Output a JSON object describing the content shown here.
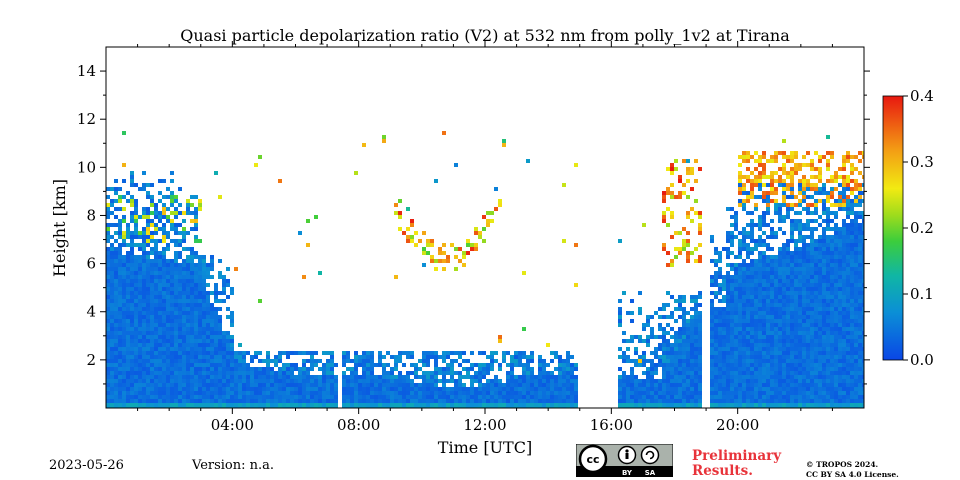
{
  "chart_data": {
    "type": "heatmap",
    "title": "Quasi particle depolarization ratio (V2) at 532 nm from polly_1v2 at Tirana",
    "xlabel": "Time [UTC]",
    "ylabel": "Height [km]",
    "xlim": [
      0,
      24
    ],
    "ylim": [
      0,
      15
    ],
    "x_ticks": [
      4,
      8,
      12,
      16,
      20
    ],
    "x_tick_labels": [
      "04:00",
      "08:00",
      "12:00",
      "16:00",
      "20:00"
    ],
    "y_ticks": [
      2,
      4,
      6,
      8,
      10,
      12,
      14
    ],
    "y_tick_labels": [
      "2",
      "4",
      "6",
      "8",
      "10",
      "12",
      "14"
    ],
    "colorbar": {
      "range": [
        0.0,
        0.4
      ],
      "ticks": [
        0.0,
        0.1,
        0.2,
        0.3,
        0.4
      ],
      "tick_labels": [
        "0.0",
        "0.1",
        "0.2",
        "0.3",
        "0.4"
      ],
      "colormap": "jet"
    },
    "data_gaps_hours": [
      [
        14.9,
        16.2
      ],
      [
        18.85,
        19.0
      ]
    ],
    "background": "#ffffff"
  },
  "footer": {
    "date": "2023-05-26",
    "version": "Version: n.a.",
    "preliminary_line1": "Preliminary",
    "preliminary_line2": "Results.",
    "copyright_line1": "© TROPOS 2024.",
    "copyright_line2": "CC BY SA 4.0 License.",
    "license_badge": "CC BY SA"
  }
}
